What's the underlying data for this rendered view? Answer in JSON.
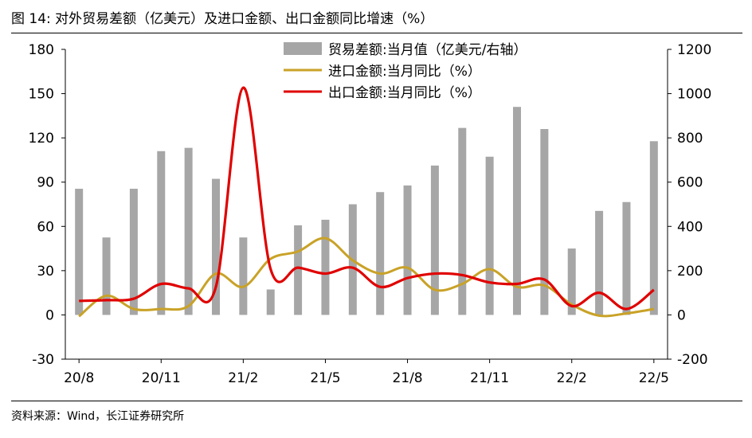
{
  "title": {
    "prefix": "图",
    "number": "14:",
    "text": "对外贸易差额（亿美元）及进口金额、出口金额同比增速（%）"
  },
  "source": "资料来源：Wind，长江证券研究所",
  "chart_data": {
    "type": "bar+line",
    "categories": [
      "20/8",
      "20/9",
      "20/10",
      "20/11",
      "20/12",
      "21/1",
      "21/2",
      "21/3",
      "21/4",
      "21/5",
      "21/6",
      "21/7",
      "21/8",
      "21/9",
      "21/10",
      "21/11",
      "21/12",
      "22/1",
      "22/2",
      "22/3",
      "22/4",
      "22/5"
    ],
    "x_tick_labels": [
      "20/8",
      "20/11",
      "21/2",
      "21/5",
      "21/8",
      "21/11",
      "22/2",
      "22/5"
    ],
    "x_tick_indices": [
      0,
      3,
      6,
      9,
      12,
      15,
      18,
      21
    ],
    "y_left": {
      "min": -30,
      "max": 180,
      "ticks": [
        -30,
        0,
        30,
        60,
        90,
        120,
        150,
        180
      ]
    },
    "y_right": {
      "min": -200,
      "max": 1200,
      "ticks": [
        -200,
        0,
        200,
        400,
        600,
        800,
        1000,
        1200
      ]
    },
    "legend_position": "top-center",
    "colors": {
      "bars": "#a6a6a6",
      "import": "#c9a227",
      "export": "#e00000",
      "axis": "#000000"
    },
    "series": [
      {
        "name": "贸易差额:当月值（亿美元/右轴）",
        "kind": "bar",
        "axis": "right",
        "values": [
          570,
          350,
          570,
          740,
          755,
          615,
          350,
          115,
          405,
          430,
          500,
          555,
          585,
          675,
          845,
          715,
          940,
          840,
          300,
          470,
          510,
          785
        ]
      },
      {
        "name": "进口金额:当月同比（%）",
        "kind": "line",
        "axis": "left",
        "values": [
          -1,
          13,
          4,
          4,
          6,
          28,
          19,
          38,
          43,
          52,
          37,
          28,
          32,
          17,
          21,
          31,
          19,
          20,
          7,
          -0.5,
          1,
          4
        ]
      },
      {
        "name": "出口金额:当月同比（%）",
        "kind": "line",
        "axis": "left",
        "values": [
          9.5,
          10,
          11,
          21,
          18,
          19,
          154,
          31,
          32,
          28,
          32,
          19,
          25,
          28,
          27,
          22,
          21,
          24,
          6,
          15,
          4,
          17
        ]
      }
    ]
  }
}
